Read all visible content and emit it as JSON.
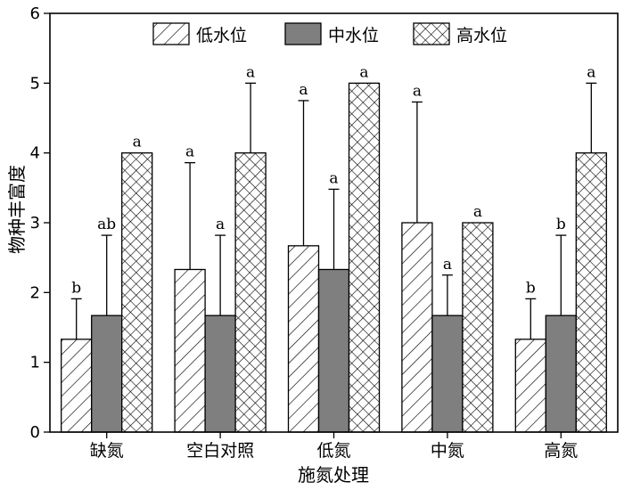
{
  "chart_data": {
    "type": "bar",
    "title": "",
    "xlabel": "施氮处理",
    "ylabel": "物种丰富度",
    "ylim": [
      0,
      6
    ],
    "yticks": [
      0,
      1,
      2,
      3,
      4,
      5,
      6
    ],
    "grid": false,
    "legend_position": "top",
    "categories": [
      "缺氮",
      "空白对照",
      "低氮",
      "中氮",
      "高氮"
    ],
    "series": [
      {
        "name": "低水位",
        "pattern": "diagonal-hatch",
        "color": "#ffffff",
        "values": [
          1.33,
          2.33,
          2.67,
          3.0,
          1.33
        ],
        "error_upper": [
          0.58,
          1.53,
          2.08,
          1.73,
          0.58
        ],
        "labels": [
          "b",
          "a",
          "a",
          "a",
          "b"
        ]
      },
      {
        "name": "中水位",
        "pattern": "solid",
        "color": "#7f7f7f",
        "values": [
          1.67,
          1.67,
          2.33,
          1.67,
          1.67
        ],
        "error_upper": [
          1.15,
          1.15,
          1.15,
          0.58,
          1.15
        ],
        "labels": [
          "ab",
          "a",
          "a",
          "a",
          "b"
        ]
      },
      {
        "name": "高水位",
        "pattern": "crosshatch",
        "color": "#ffffff",
        "values": [
          4.0,
          4.0,
          5.0,
          3.0,
          4.0
        ],
        "error_upper": [
          0,
          1.0,
          0,
          0,
          1.0
        ],
        "labels": [
          "a",
          "a",
          "a",
          "a",
          "a"
        ]
      }
    ]
  }
}
